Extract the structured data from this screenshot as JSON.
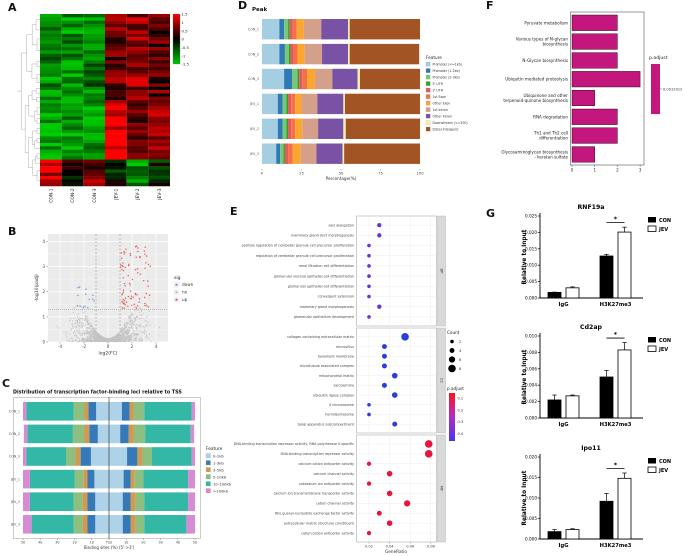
{
  "panels": {
    "A": {
      "label": "A"
    },
    "B": {
      "label": "B"
    },
    "C": {
      "label": "C"
    },
    "D": {
      "label": "D"
    },
    "E": {
      "label": "E"
    },
    "F": {
      "label": "F"
    },
    "G": {
      "label": "G"
    }
  },
  "chart_data": [
    {
      "id": "heatmap",
      "type": "heatmap",
      "columns": [
        "CON-1",
        "CON-2",
        "CON-3",
        "JEV-1",
        "JEV-2",
        "JEV-3"
      ],
      "colorbar_ticks": [
        "1.5",
        "1",
        "0.5",
        "0",
        "-0.5",
        "-1",
        "-1.5"
      ],
      "colors": {
        "high": "#ff0000",
        "mid": "#000000",
        "low": "#00c800"
      },
      "row_groups": [
        {
          "rows": 26,
          "base": [
            -1.0,
            -1.1,
            -0.9,
            0.55,
            0.85,
            0.5
          ],
          "jitter": 0.55
        },
        {
          "rows": 18,
          "base": [
            -1.2,
            -1.05,
            -1.1,
            1.35,
            0.5,
            0.9
          ],
          "jitter": 0.45
        },
        {
          "rows": 8,
          "base": [
            1.25,
            0.15,
            0.7,
            -0.25,
            -1.05,
            -0.2
          ],
          "jitter": 0.6
        }
      ],
      "seed": 7
    },
    {
      "id": "volcano",
      "type": "scatter",
      "xlabel": "log2(FC)",
      "ylabel": "-log10(padj)",
      "xticks": [
        -4,
        -2,
        0,
        2,
        4
      ],
      "yticks": [
        0,
        1,
        2,
        3,
        4
      ],
      "xlim": [
        -5,
        5
      ],
      "ylim": [
        0,
        4.3
      ],
      "vlines": [
        -1,
        1
      ],
      "hline": 1.3,
      "legend": {
        "title": "sig",
        "items": [
          {
            "label": "down",
            "color": "#5b8fd4"
          },
          {
            "label": "no",
            "color": "#bdbdbd"
          },
          {
            "label": "up",
            "color": "#e4544f"
          }
        ]
      },
      "n_background": 1500,
      "n_up": 85,
      "n_down": 14,
      "seed": 11
    },
    {
      "id": "tss",
      "type": "bar",
      "title": "Distribution of transcription factor-binding loci relative to TSS",
      "xlabel": "Binding sites (%) (5'->3')",
      "xticks": [
        "50",
        "40",
        "30",
        "20",
        "10",
        "TSS",
        "10",
        "20",
        "30",
        "40",
        "50"
      ],
      "categories": [
        "CON_1",
        "CON_2",
        "CON_3",
        "JEV_1",
        "JEV_2",
        "JEV_3"
      ],
      "legend_title": "Feature",
      "features": [
        "0-1kb",
        "1-3kb",
        "3-5kb",
        "5-10kb",
        "10-100kb",
        ">100kb"
      ],
      "colors": [
        "#aed2e8",
        "#3679b8",
        "#cf9b52",
        "#8cbf80",
        "#32b8a4",
        "#d68bd4"
      ],
      "halves": [
        [
          7.5,
          4.5,
          2.5,
          6,
          27.5,
          2
        ],
        [
          6.5,
          5,
          3,
          6.5,
          26.5,
          2
        ],
        [
          10.5,
          6,
          3,
          5.5,
          23,
          2
        ],
        [
          8.5,
          4,
          2.5,
          5,
          26,
          4
        ],
        [
          8,
          4.5,
          3,
          5,
          25.5,
          4
        ],
        [
          8,
          4.5,
          3,
          5,
          24.5,
          5
        ]
      ]
    },
    {
      "id": "peak",
      "type": "bar",
      "title": "Peak",
      "xlabel": "Percentage(%)",
      "xticks": [
        0,
        25,
        50,
        75,
        100
      ],
      "categories": [
        "CON_1",
        "CON_2",
        "CON_3",
        "JEV_1",
        "JEV_2",
        "JEV_3"
      ],
      "legend_title": "Feature",
      "features": [
        "Promoter (<=1kb)",
        "Promoter (1-2kb)",
        "Promoter (2-3kb)",
        "5' UTR",
        "3' UTR",
        "1st Exon",
        "Other Exon",
        "1st Intron",
        "Other Intron",
        "Downstream (<=300)",
        "Distal Intergenic"
      ],
      "colors": [
        "#a6cee3",
        "#2f79b5",
        "#78c679",
        "#33a02c",
        "#e4595b",
        "#f4704d",
        "#fda62f",
        "#d4a089",
        "#7a52a5",
        "#f7f3ac",
        "#a35425"
      ],
      "series_values": [
        [
          11,
          3,
          2.5,
          1,
          2,
          2.5,
          4.5,
          11,
          17,
          1,
          44.5
        ],
        [
          11,
          3.5,
          2.5,
          1,
          2,
          2.5,
          4.5,
          11,
          16.5,
          1,
          44
        ],
        [
          14,
          5,
          3.5,
          1,
          2,
          3,
          5,
          11,
          16,
          1.5,
          38
        ],
        [
          10,
          3,
          2.5,
          1,
          2,
          2.5,
          4,
          10,
          16.5,
          1,
          47.5
        ],
        [
          10,
          3,
          2.5,
          1,
          2,
          2.5,
          4.5,
          10,
          16,
          1.5,
          47
        ],
        [
          9,
          2.5,
          2,
          1,
          2,
          3,
          5,
          10,
          16.5,
          1,
          48
        ]
      ]
    },
    {
      "id": "go",
      "type": "scatter",
      "xlabel": "GeneRatio",
      "xticks": [
        0.02,
        0.04,
        0.06,
        0.08
      ],
      "legend_count": {
        "title": "Count",
        "values": [
          2,
          4,
          6,
          8
        ]
      },
      "legend_padjust": {
        "title": "p.adjust",
        "ticks": [
          "0.1",
          "0.2",
          "0.3",
          "0.4"
        ]
      },
      "facets": [
        {
          "label": "BP",
          "color": "#6a33cc",
          "terms": [
            {
              "term": "axis elongation",
              "ratio": 0.03,
              "count": 3
            },
            {
              "term": "mammary gland duct morphogenesis",
              "ratio": 0.03,
              "count": 3
            },
            {
              "term": "positive regulation of cerebellar granule cell precursor proliferation",
              "ratio": 0.02,
              "count": 2
            },
            {
              "term": "regulation of cerebellar granule cell precursor proliferation",
              "ratio": 0.02,
              "count": 2
            },
            {
              "term": "renal filtration cell differentiation",
              "ratio": 0.02,
              "count": 2
            },
            {
              "term": "glomerular visceral epithelial cell differentiation",
              "ratio": 0.02,
              "count": 2
            },
            {
              "term": "glomerular epithelial cell differentiation",
              "ratio": 0.02,
              "count": 2
            },
            {
              "term": "convergent extension",
              "ratio": 0.02,
              "count": 2
            },
            {
              "term": "mammary gland morphogenesis",
              "ratio": 0.03,
              "count": 3
            },
            {
              "term": "glomerular epithelium development",
              "ratio": 0.02,
              "count": 2
            }
          ]
        },
        {
          "label": "CC",
          "color": "#2b3fd8",
          "terms": [
            {
              "term": "collagen-containing extracellular matrix",
              "ratio": 0.055,
              "count": 8
            },
            {
              "term": "microvillus",
              "ratio": 0.035,
              "count": 4
            },
            {
              "term": "basement membrane",
              "ratio": 0.035,
              "count": 4
            },
            {
              "term": "microtubule associated complex",
              "ratio": 0.035,
              "count": 4
            },
            {
              "term": "mitochondrial matrix",
              "ratio": 0.045,
              "count": 5
            },
            {
              "term": "sarcolemma",
              "ratio": 0.035,
              "count": 4
            },
            {
              "term": "ubiquitin ligase complex",
              "ratio": 0.045,
              "count": 5
            },
            {
              "term": "X chromosome",
              "ratio": 0.02,
              "count": 2
            },
            {
              "term": "hemidesmosome",
              "ratio": 0.02,
              "count": 2
            },
            {
              "term": "Golgi apparatus subcompartment",
              "ratio": 0.045,
              "count": 4
            }
          ]
        },
        {
          "label": "MF",
          "color": "#e6173c",
          "terms": [
            {
              "term": "DNA-binding transcription repressor activity, RNA polymerase II-specific",
              "ratio": 0.078,
              "count": 8
            },
            {
              "term": "DNA-binding transcription repressor activity",
              "ratio": 0.078,
              "count": 8
            },
            {
              "term": "calcium:cation antiporter activity",
              "ratio": 0.02,
              "count": 3
            },
            {
              "term": "calcium channel activity",
              "ratio": 0.04,
              "count": 5
            },
            {
              "term": "potassium ion antiporter activity",
              "ratio": 0.02,
              "count": 3
            },
            {
              "term": "calcium ion transmembrane transporter activity",
              "ratio": 0.04,
              "count": 5
            },
            {
              "term": "cation channel activity",
              "ratio": 0.057,
              "count": 6
            },
            {
              "term": "Rho guanyl-nucleotide exchange factor activity",
              "ratio": 0.03,
              "count": 4
            },
            {
              "term": "extracellular matrix structural constituent",
              "ratio": 0.04,
              "count": 5
            },
            {
              "term": "cation:cation antiporter activity",
              "ratio": 0.02,
              "count": 3
            }
          ]
        }
      ]
    },
    {
      "id": "kegg",
      "type": "bar",
      "categories": [
        "Pyruvate metabolism",
        "Various types of N-glycan biosynthesis",
        "N-Glycan biosynthesis",
        "Ubiquitin mediated proteolysis",
        "Ubiquinone and other terpenoid-quinone biosynthesis",
        "RNA degradation",
        "Th1 and Th2 cell differentiation",
        "Glycosaminoglycan biosynthesis - keratan sulfate"
      ],
      "values": [
        2,
        2,
        2,
        3,
        1,
        2,
        2,
        1
      ],
      "xticks": [
        0,
        1,
        2,
        3
      ],
      "bar_color": "#c4177e",
      "legend": {
        "title": "p.adjust",
        "tick": "0.0012012"
      }
    },
    {
      "id": "chip",
      "type": "bar",
      "ylabel": "Relative to Input",
      "series": [
        "CON",
        "JEV"
      ],
      "charts": [
        {
          "title": "RNF19a",
          "ymax": 0.025,
          "ystep": 0.005,
          "sig": "*",
          "groups": [
            {
              "label": "IgG",
              "bars": [
                {
                  "series": "CON",
                  "value": 0.0017,
                  "err": 0.0001
                },
                {
                  "series": "JEV",
                  "value": 0.0031,
                  "err": 0.0003
                }
              ]
            },
            {
              "label": "H3K27me3",
              "bars": [
                {
                  "series": "CON",
                  "value": 0.0128,
                  "err": 0.0005
                },
                {
                  "series": "JEV",
                  "value": 0.0201,
                  "err": 0.0015
                }
              ]
            }
          ]
        },
        {
          "title": "Cd2ap",
          "ymax": 0.01,
          "ystep": 0.002,
          "sig": "*",
          "groups": [
            {
              "label": "IgG",
              "bars": [
                {
                  "series": "CON",
                  "value": 0.0022,
                  "err": 0.0006
                },
                {
                  "series": "JEV",
                  "value": 0.0027,
                  "err": 0.0001
                }
              ]
            },
            {
              "label": "H3K27me3",
              "bars": [
                {
                  "series": "CON",
                  "value": 0.005,
                  "err": 0.0008
                },
                {
                  "series": "JEV",
                  "value": 0.0083,
                  "err": 0.0009
                }
              ]
            }
          ]
        },
        {
          "title": "Ipo11",
          "ymax": 0.02,
          "ystep": 0.005,
          "sig": "*",
          "groups": [
            {
              "label": "IgG",
              "bars": [
                {
                  "series": "CON",
                  "value": 0.0018,
                  "err": 0.0005
                },
                {
                  "series": "JEV",
                  "value": 0.0023,
                  "err": 0.0002
                }
              ]
            },
            {
              "label": "H3K27me3",
              "bars": [
                {
                  "series": "CON",
                  "value": 0.0092,
                  "err": 0.0019
                },
                {
                  "series": "JEV",
                  "value": 0.0148,
                  "err": 0.0013
                }
              ]
            }
          ]
        }
      ]
    }
  ]
}
